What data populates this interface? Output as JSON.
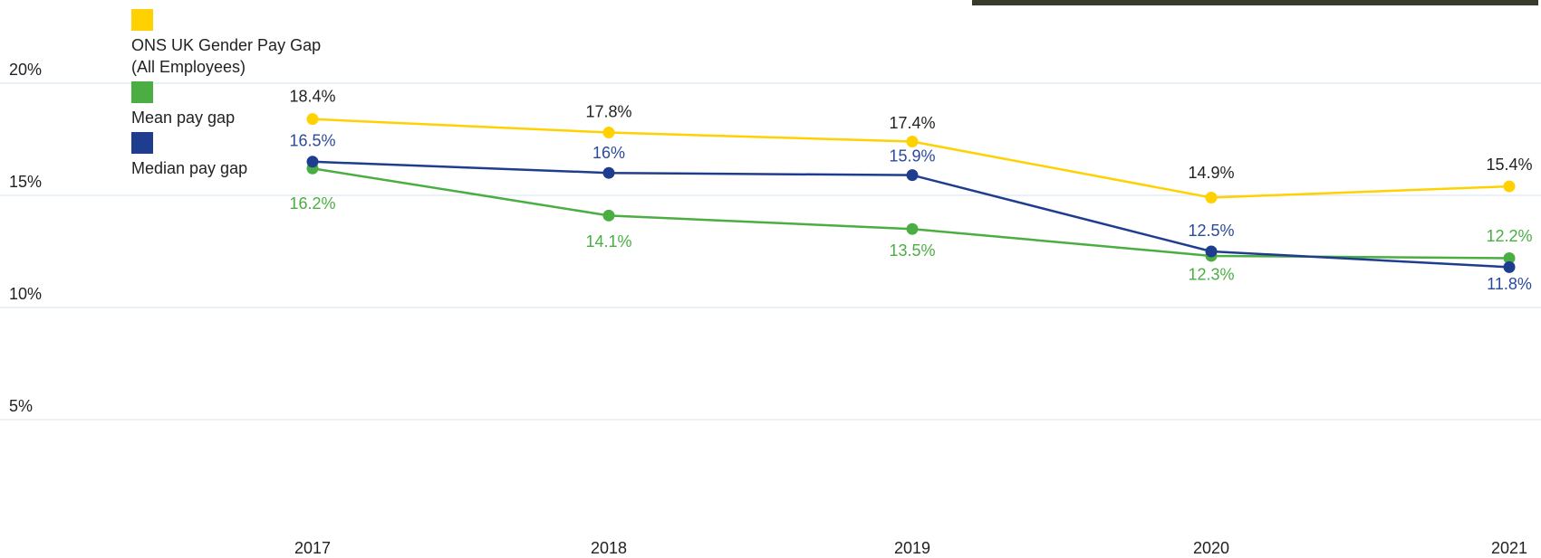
{
  "chart_data": {
    "type": "line",
    "categories": [
      "2017",
      "2018",
      "2019",
      "2020",
      "2021"
    ],
    "series": [
      {
        "name": "ONS UK Gender Pay Gap (All Employees)",
        "color": "#ffd100",
        "label_color": "#222222",
        "values": [
          18.4,
          17.8,
          17.4,
          14.9,
          15.4
        ],
        "value_labels": [
          "18.4%",
          "17.8%",
          "17.4%",
          "14.9%",
          "15.4%"
        ]
      },
      {
        "name": "Mean pay gap",
        "color": "#4aae43",
        "label_color": "#4aae43",
        "values": [
          16.2,
          14.1,
          13.5,
          12.3,
          12.2
        ],
        "value_labels": [
          "16.2%",
          "14.1%",
          "13.5%",
          "12.3%",
          "12.2%"
        ]
      },
      {
        "name": "Median pay gap",
        "color": "#1f3d8f",
        "label_color": "#2b4a9c",
        "values": [
          16.5,
          16,
          15.9,
          12.5,
          11.8
        ],
        "value_labels": [
          "16.5%",
          "16%",
          "15.9%",
          "12.5%",
          "11.8%"
        ]
      }
    ],
    "ylim": [
      0,
      20
    ],
    "yticks": [
      {
        "value": 5,
        "label": "5%"
      },
      {
        "value": 10,
        "label": "10%"
      },
      {
        "value": 15,
        "label": "15%"
      },
      {
        "value": 20,
        "label": "20%"
      }
    ],
    "grid": true
  }
}
